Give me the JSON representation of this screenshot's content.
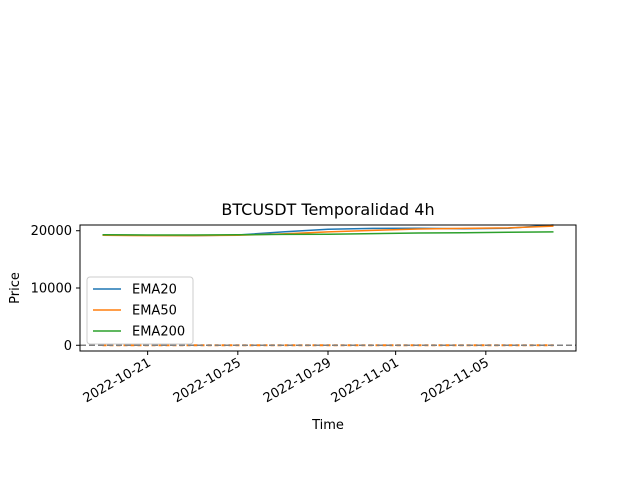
{
  "chart_data": {
    "type": "line",
    "title": "BTCUSDT Temporalidad 4h",
    "xlabel": "Time",
    "ylabel": "Price",
    "x_ticks": [
      "2022-10-21",
      "2022-10-25",
      "2022-10-29",
      "2022-11-01",
      "2022-11-05"
    ],
    "y_ticks": [
      0,
      10000,
      20000
    ],
    "ylim": [
      -1000,
      21000
    ],
    "xlim": [
      "2022-10-18",
      "2022-11-09"
    ],
    "grid": false,
    "legend_position": "center-left",
    "x": [
      "2022-10-19",
      "2022-10-21",
      "2022-10-23",
      "2022-10-25",
      "2022-10-27",
      "2022-10-29",
      "2022-10-31",
      "2022-11-02",
      "2022-11-04",
      "2022-11-06",
      "2022-11-08"
    ],
    "series": [
      {
        "name": "EMA20",
        "color": "#1f77b4",
        "values": [
          19250,
          19200,
          19150,
          19250,
          19800,
          20250,
          20400,
          20450,
          20350,
          20450,
          21000
        ]
      },
      {
        "name": "EMA50",
        "color": "#ff7f0e",
        "values": [
          19200,
          19150,
          19150,
          19200,
          19450,
          19800,
          20050,
          20300,
          20400,
          20500,
          20800
        ]
      },
      {
        "name": "EMA200",
        "color": "#2ca02c",
        "values": [
          19300,
          19250,
          19250,
          19300,
          19350,
          19400,
          19500,
          19600,
          19650,
          19750,
          19800
        ]
      }
    ],
    "overlay_lines": [
      {
        "color": "#ff7f0e",
        "values": [
          0,
          0,
          0,
          0,
          0,
          0,
          0,
          0,
          0,
          0,
          0
        ]
      }
    ],
    "reference_line": {
      "y": 0,
      "color": "#808080",
      "style": "dashed"
    }
  }
}
